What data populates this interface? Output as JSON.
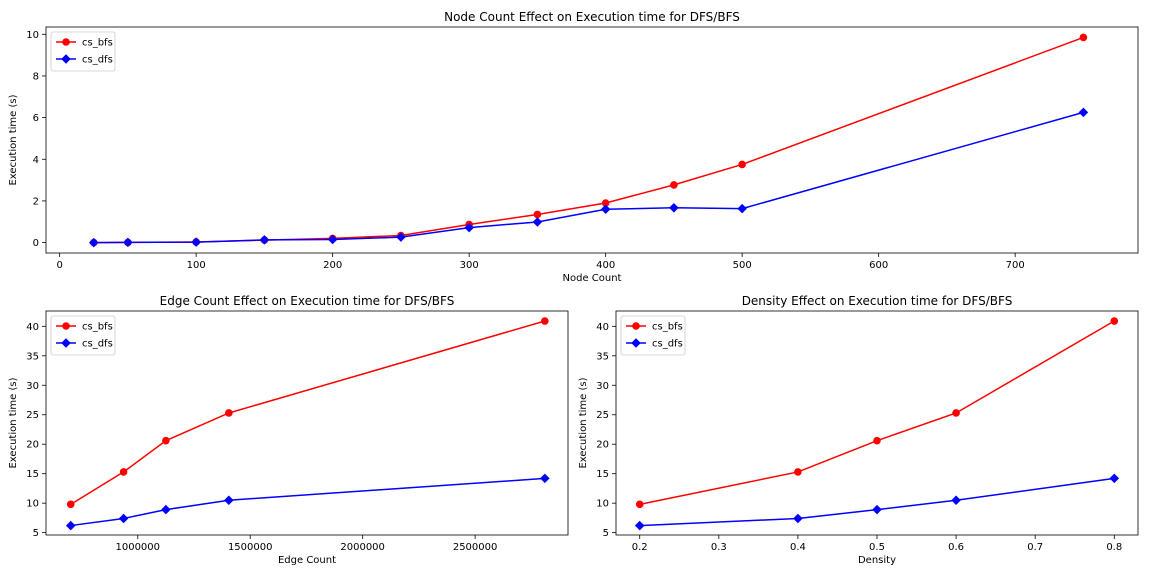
{
  "chart_data": [
    {
      "type": "line",
      "title": "Node Count Effect on Execution time for DFS/BFS",
      "xlabel": "Node Count",
      "ylabel": "Execution time (s)",
      "xlim": [
        -10,
        790
      ],
      "ylim": [
        -0.5,
        10.35
      ],
      "xticks": [
        0,
        100,
        200,
        300,
        400,
        500,
        600,
        700
      ],
      "yticks": [
        0,
        2,
        4,
        6,
        8,
        10
      ],
      "x": [
        25,
        50,
        100,
        150,
        200,
        250,
        300,
        350,
        400,
        450,
        500,
        750
      ],
      "series": [
        {
          "name": "cs_bfs",
          "color": "#ff0000",
          "marker": "circle",
          "values": [
            0.0,
            0.01,
            0.03,
            0.12,
            0.2,
            0.34,
            0.87,
            1.35,
            1.9,
            2.77,
            3.75,
            9.85
          ]
        },
        {
          "name": "cs_dfs",
          "color": "#0000ff",
          "marker": "diamond",
          "values": [
            0.0,
            0.01,
            0.02,
            0.13,
            0.15,
            0.26,
            0.72,
            0.99,
            1.6,
            1.67,
            1.63,
            6.25
          ]
        }
      ],
      "grid": false,
      "legend": "top-left"
    },
    {
      "type": "line",
      "title": "Edge Count Effect on Execution time for DFS/BFS",
      "xlabel": "Edge Count",
      "ylabel": "Execution time (s)",
      "xlim": [
        592000,
        2913000
      ],
      "ylim": [
        4.6,
        42.6
      ],
      "xticks": [
        1000000,
        1500000,
        2000000,
        2500000
      ],
      "yticks": [
        5,
        10,
        15,
        20,
        25,
        30,
        35,
        40
      ],
      "x": [
        702000,
        937000,
        1125000,
        1405000,
        2810000
      ],
      "series": [
        {
          "name": "cs_bfs",
          "color": "#ff0000",
          "marker": "circle",
          "values": [
            9.8,
            15.3,
            20.6,
            25.3,
            40.9
          ]
        },
        {
          "name": "cs_dfs",
          "color": "#0000ff",
          "marker": "diamond",
          "values": [
            6.2,
            7.4,
            8.9,
            10.5,
            14.2
          ]
        }
      ],
      "grid": false,
      "legend": "top-left"
    },
    {
      "type": "line",
      "title": "Density Effect on Execution time for DFS/BFS",
      "xlabel": "Density",
      "ylabel": "Execution time (s)",
      "xlim": [
        0.17,
        0.83
      ],
      "ylim": [
        4.6,
        42.6
      ],
      "xticks": [
        0.2,
        0.3,
        0.4,
        0.5,
        0.6,
        0.7,
        0.8
      ],
      "yticks": [
        5,
        10,
        15,
        20,
        25,
        30,
        35,
        40
      ],
      "x": [
        0.2,
        0.4,
        0.5,
        0.6,
        0.8
      ],
      "series": [
        {
          "name": "cs_bfs",
          "color": "#ff0000",
          "marker": "circle",
          "values": [
            9.8,
            15.3,
            20.6,
            25.3,
            40.9
          ]
        },
        {
          "name": "cs_dfs",
          "color": "#0000ff",
          "marker": "diamond",
          "values": [
            6.2,
            7.4,
            8.9,
            10.5,
            14.2
          ]
        }
      ],
      "grid": false,
      "legend": "top-left"
    }
  ]
}
